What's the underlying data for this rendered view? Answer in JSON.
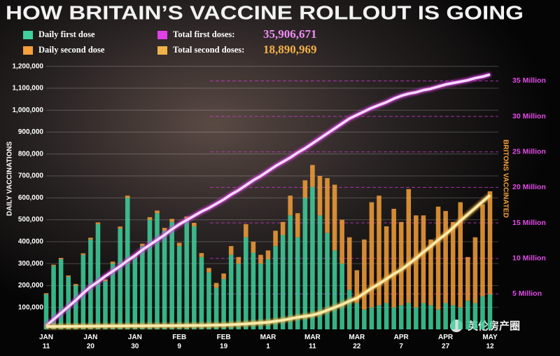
{
  "chart_data": {
    "type": "bar",
    "stacked": true,
    "title": "HOW BRITAIN’S VACCINE ROLLOUT IS GOING",
    "ylabel": "DAILY VACCINATIONS",
    "y2label": "BRITONS VACCINATED",
    "watermark": "英伦房产圈",
    "categories": [
      "JAN 11",
      null,
      null,
      null,
      null,
      null,
      "JAN 20",
      null,
      null,
      null,
      null,
      null,
      "JAN 30",
      null,
      null,
      null,
      null,
      null,
      "FEB 9",
      null,
      null,
      null,
      null,
      null,
      "FEB 19",
      null,
      null,
      null,
      null,
      null,
      "MAR 1",
      null,
      null,
      null,
      null,
      null,
      "MAR 11",
      null,
      null,
      null,
      null,
      null,
      "MAR 22",
      null,
      null,
      null,
      null,
      null,
      "APR 7",
      null,
      null,
      null,
      null,
      null,
      "APR 27",
      null,
      null,
      null,
      null,
      null,
      "MAY 12"
    ],
    "ylim": [
      0,
      1250000
    ],
    "yticks": [
      {
        "value": 100000,
        "label": "100,000"
      },
      {
        "value": 200000,
        "label": "200,000"
      },
      {
        "value": 300000,
        "label": "300,000"
      },
      {
        "value": 400000,
        "label": "400,000"
      },
      {
        "value": 500000,
        "label": "500,000"
      },
      {
        "value": 600000,
        "label": "600,000"
      },
      {
        "value": 700000,
        "label": "700,000"
      },
      {
        "value": 800000,
        "label": "800,000"
      },
      {
        "value": 900000,
        "label": "900,000"
      },
      {
        "value": 1000000,
        "label": "1,000,000"
      },
      {
        "value": 1100000,
        "label": "1,100,000"
      },
      {
        "value": 1200000,
        "label": "1,200,000"
      }
    ],
    "y2lim": [
      0,
      38.6
    ],
    "y2ticks": [
      {
        "value": 5,
        "label": "5 Million"
      },
      {
        "value": 10,
        "label": "10 Million"
      },
      {
        "value": 15,
        "label": "15 Million"
      },
      {
        "value": 20,
        "label": "20 Million"
      },
      {
        "value": 25,
        "label": "25 Million"
      },
      {
        "value": 30,
        "label": "30 Million"
      },
      {
        "value": 35,
        "label": "35 Million"
      }
    ],
    "grid": true,
    "series": [
      {
        "name": "Daily first dose",
        "type": "bar",
        "color": "#3fd29c",
        "values": [
          160000,
          290000,
          320000,
          240000,
          200000,
          340000,
          410000,
          480000,
          220000,
          300000,
          460000,
          600000,
          330000,
          380000,
          500000,
          530000,
          450000,
          490000,
          380000,
          500000,
          470000,
          330000,
          260000,
          190000,
          230000,
          340000,
          300000,
          420000,
          350000,
          300000,
          320000,
          380000,
          430000,
          520000,
          420000,
          600000,
          650000,
          520000,
          440000,
          360000,
          300000,
          180000,
          120000,
          90000,
          100000,
          110000,
          120000,
          100000,
          110000,
          120000,
          100000,
          120000,
          110000,
          90000,
          120000,
          110000,
          100000,
          130000,
          120000,
          150000,
          160000
        ]
      },
      {
        "name": "Daily second dose",
        "type": "bar",
        "color": "#f5a03a",
        "values": [
          5000,
          5000,
          6000,
          6000,
          7000,
          7000,
          8000,
          8000,
          8000,
          9000,
          9000,
          10000,
          10000,
          11000,
          12000,
          12000,
          13000,
          14000,
          15000,
          15000,
          16000,
          18000,
          20000,
          22000,
          25000,
          40000,
          30000,
          60000,
          50000,
          40000,
          40000,
          70000,
          60000,
          90000,
          110000,
          80000,
          100000,
          180000,
          250000,
          300000,
          200000,
          240000,
          150000,
          320000,
          480000,
          500000,
          350000,
          450000,
          380000,
          520000,
          420000,
          400000,
          300000,
          470000,
          420000,
          380000,
          480000,
          200000,
          300000,
          420000,
          470000
        ]
      },
      {
        "name": "Total first doses:",
        "total": "35,906,671",
        "type": "line",
        "axis": "y2",
        "color": "#e040e8",
        "line_color": "#f3dcff",
        "total_color": "#f08cf5",
        "values": [
          0.5,
          1.4,
          2.3,
          3.2,
          4.1,
          5.1,
          6.0,
          6.7,
          7.5,
          8.2,
          8.9,
          9.7,
          10.4,
          11.2,
          11.9,
          12.6,
          13.3,
          14.1,
          14.8,
          15.4,
          16.0,
          16.6,
          17.1,
          17.7,
          18.3,
          19.0,
          19.6,
          20.3,
          21.0,
          21.6,
          22.3,
          23.0,
          23.6,
          24.2,
          24.9,
          25.5,
          26.2,
          26.9,
          27.6,
          28.3,
          29.0,
          29.7,
          30.2,
          30.7,
          31.2,
          31.6,
          32.0,
          32.5,
          32.9,
          33.2,
          33.4,
          33.7,
          33.9,
          34.2,
          34.5,
          34.7,
          34.9,
          35.1,
          35.4,
          35.6,
          35.906671
        ]
      },
      {
        "name": "Total second doses:",
        "total": "18,890,969",
        "type": "line",
        "axis": "y2",
        "color": "#f2b24a",
        "line_color": "#f7ecb0",
        "total_color": "#f5b04a",
        "values": [
          0.4,
          0.41,
          0.42,
          0.42,
          0.43,
          0.44,
          0.45,
          0.46,
          0.47,
          0.48,
          0.48,
          0.49,
          0.5,
          0.5,
          0.51,
          0.51,
          0.52,
          0.52,
          0.53,
          0.54,
          0.55,
          0.56,
          0.58,
          0.6,
          0.62,
          0.67,
          0.72,
          0.78,
          0.85,
          0.92,
          1.0,
          1.15,
          1.3,
          1.5,
          1.7,
          1.85,
          2.0,
          2.3,
          2.7,
          3.1,
          3.5,
          4.0,
          4.4,
          5.1,
          5.8,
          6.4,
          7.1,
          7.8,
          8.4,
          9.2,
          10.0,
          10.9,
          11.7,
          12.6,
          13.4,
          14.3,
          15.3,
          16.2,
          17.1,
          18.0,
          18.890969
        ]
      }
    ]
  }
}
